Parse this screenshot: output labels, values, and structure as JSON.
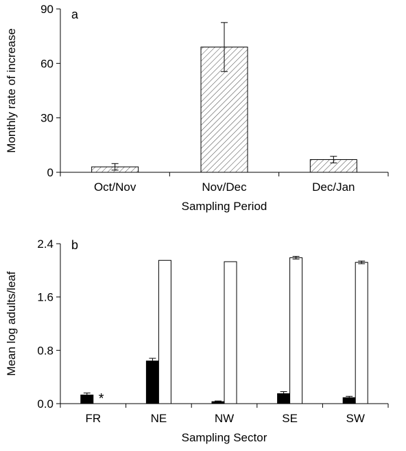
{
  "chart_data": [
    {
      "type": "bar",
      "panel_label": "a",
      "xlabel": "Sampling Period",
      "ylabel": "Monthly rate of increase",
      "ylim": [
        0,
        90
      ],
      "yticks": [
        "0",
        "30",
        "60",
        "90"
      ],
      "categories": [
        "Oct/Nov",
        "Nov/Dec",
        "Dec/Jan"
      ],
      "series": [
        {
          "values": [
            3,
            69,
            7
          ],
          "error": [
            1.8,
            13.5,
            1.8
          ],
          "fill": "hatched"
        }
      ],
      "grid": false,
      "legend": "none"
    },
    {
      "type": "bar",
      "panel_label": "b",
      "xlabel": "Sampling Sector",
      "ylabel": "Mean log adults/leaf",
      "ylim": [
        0,
        2.4
      ],
      "yticks": [
        "0.0",
        "0.8",
        "1.6",
        "2.4"
      ],
      "categories": [
        "FR",
        "NE",
        "NW",
        "SE",
        "SW"
      ],
      "series": [
        {
          "values": [
            0.13,
            0.64,
            0.03,
            0.15,
            0.09
          ],
          "error": [
            0.03,
            0.04,
            0.01,
            0.03,
            0.02
          ],
          "color": "#000000"
        },
        {
          "values": [
            null,
            2.15,
            2.13,
            2.19,
            2.12
          ],
          "error": [
            null,
            0.0,
            0.0,
            0.02,
            0.02
          ],
          "color": "#ffffff"
        }
      ],
      "annotation": "*",
      "grid": false,
      "legend": "none"
    }
  ]
}
